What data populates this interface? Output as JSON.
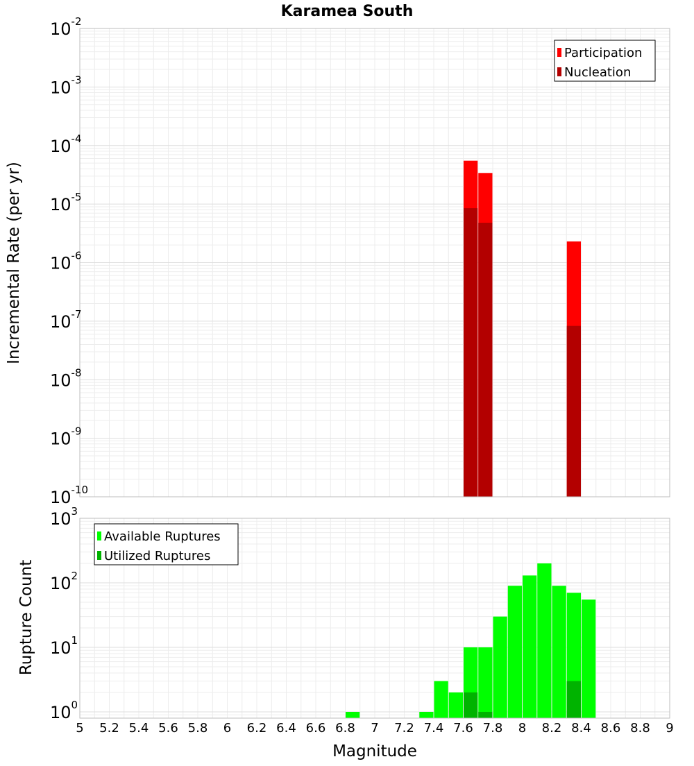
{
  "chart_data": [
    {
      "type": "bar",
      "title": "Karamea South",
      "xlabel": "",
      "ylabel": "Incremental Rate (per yr)",
      "yscale": "log",
      "ylim": [
        1e-10,
        0.01
      ],
      "xlim": [
        5,
        9
      ],
      "bar_width": 0.1,
      "yticks": [
        {
          "base": "10",
          "exp": "-10",
          "value": 1e-10
        },
        {
          "base": "10",
          "exp": "-9",
          "value": 1e-09
        },
        {
          "base": "10",
          "exp": "-8",
          "value": 1e-08
        },
        {
          "base": "10",
          "exp": "-7",
          "value": 1e-07
        },
        {
          "base": "10",
          "exp": "-6",
          "value": 1e-06
        },
        {
          "base": "10",
          "exp": "-5",
          "value": 1e-05
        },
        {
          "base": "10",
          "exp": "-4",
          "value": 0.0001
        },
        {
          "base": "10",
          "exp": "-3",
          "value": 0.001
        },
        {
          "base": "10",
          "exp": "-2",
          "value": 0.01
        }
      ],
      "legend": {
        "position": "top-right",
        "entries": [
          "Participation",
          "Nucleation"
        ]
      },
      "grid": true,
      "series": [
        {
          "name": "Participation",
          "color": "#ff0000",
          "x": [
            7.65,
            7.75,
            8.35
          ],
          "values": [
            5.5e-05,
            3.4e-05,
            2.3e-06
          ]
        },
        {
          "name": "Nucleation",
          "color": "#b30000",
          "x": [
            7.65,
            7.75,
            8.35
          ],
          "values": [
            8.5e-06,
            4.8e-06,
            8.3e-08
          ]
        }
      ]
    },
    {
      "type": "bar",
      "title": "",
      "xlabel": "Magnitude",
      "ylabel": "Rupture Count",
      "yscale": "log",
      "ylim": [
        0.8,
        1000
      ],
      "xlim": [
        5,
        9
      ],
      "bar_width": 0.1,
      "yticks": [
        {
          "base": "10",
          "exp": "0",
          "value": 1
        },
        {
          "base": "10",
          "exp": "1",
          "value": 10
        },
        {
          "base": "10",
          "exp": "2",
          "value": 100
        },
        {
          "base": "10",
          "exp": "3",
          "value": 1000
        }
      ],
      "xticks": [
        "5",
        "5.2",
        "5.4",
        "5.6",
        "5.8",
        "6",
        "6.2",
        "6.4",
        "6.6",
        "6.8",
        "7",
        "7.2",
        "7.4",
        "7.6",
        "7.8",
        "8",
        "8.2",
        "8.4",
        "8.6",
        "8.8",
        "9"
      ],
      "legend": {
        "position": "top-left",
        "entries": [
          "Available Ruptures",
          "Utilized Ruptures"
        ]
      },
      "grid": true,
      "series": [
        {
          "name": "Available Ruptures",
          "color": "#00ff00",
          "x": [
            6.85,
            7.35,
            7.45,
            7.55,
            7.65,
            7.75,
            7.85,
            7.95,
            8.05,
            8.15,
            8.25,
            8.35,
            8.45
          ],
          "values": [
            1,
            1,
            3,
            2,
            10,
            10,
            30,
            90,
            130,
            200,
            90,
            70,
            55
          ]
        },
        {
          "name": "Utilized Ruptures",
          "color": "#00b300",
          "x": [
            7.65,
            7.75,
            8.35
          ],
          "values": [
            2,
            1,
            3
          ]
        }
      ]
    }
  ]
}
